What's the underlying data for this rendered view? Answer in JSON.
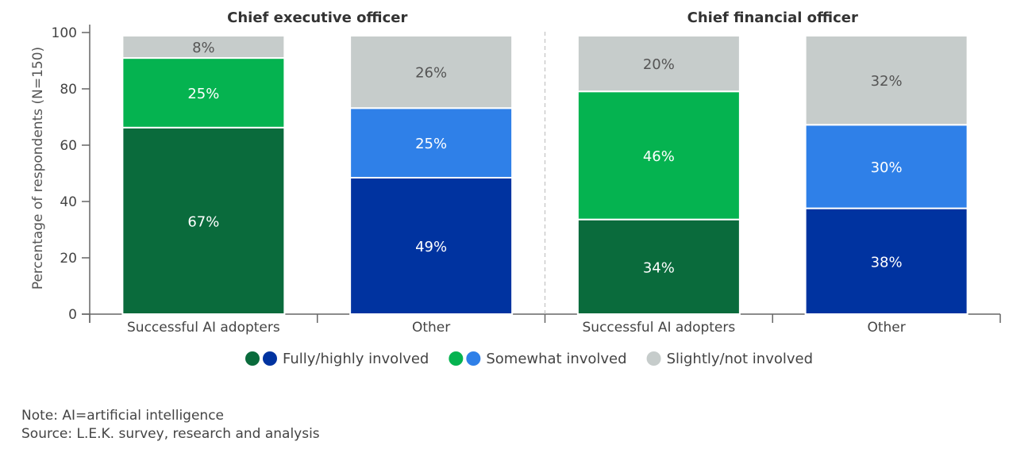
{
  "chart_data": {
    "type": "bar",
    "stacked": true,
    "ylabel": "Percentage of respondents (N=150)",
    "ylim": [
      0,
      100
    ],
    "yticks": [
      0,
      20,
      40,
      60,
      80,
      100
    ],
    "grid": false,
    "legend_placement": "bottom",
    "panels": [
      {
        "title": "Chief executive officer",
        "categories": [
          "Successful AI adopters",
          "Other"
        ],
        "series": [
          {
            "name": "Fully/highly involved",
            "values": [
              67,
              49
            ],
            "colors": [
              "#0a6b3c",
              "#0033a0"
            ],
            "labels": [
              "67%",
              "49%"
            ]
          },
          {
            "name": "Somewhat involved",
            "values": [
              25,
              25
            ],
            "colors": [
              "#05b350",
              "#2f80e8"
            ],
            "labels": [
              "25%",
              "25%"
            ]
          },
          {
            "name": "Slightly/not involved",
            "values": [
              8,
              26
            ],
            "colors": [
              "#c6cccb",
              "#c6cccb"
            ],
            "labels": [
              "8%",
              "26%"
            ]
          }
        ]
      },
      {
        "title": "Chief financial officer",
        "categories": [
          "Successful AI adopters",
          "Other"
        ],
        "series": [
          {
            "name": "Fully/highly involved",
            "values": [
              34,
              38
            ],
            "colors": [
              "#0a6b3c",
              "#0033a0"
            ],
            "labels": [
              "34%",
              "38%"
            ]
          },
          {
            "name": "Somewhat involved",
            "values": [
              46,
              30
            ],
            "colors": [
              "#05b350",
              "#2f80e8"
            ],
            "labels": [
              "46%",
              "30%"
            ]
          },
          {
            "name": "Slightly/not involved",
            "values": [
              20,
              32
            ],
            "colors": [
              "#c6cccb",
              "#c6cccb"
            ],
            "labels": [
              "20%",
              "32%"
            ]
          }
        ]
      }
    ],
    "legend": [
      {
        "label": "Fully/highly involved",
        "colors": [
          "#0a6b3c",
          "#0033a0"
        ]
      },
      {
        "label": "Somewhat involved",
        "colors": [
          "#05b350",
          "#2f80e8"
        ]
      },
      {
        "label": "Slightly/not involved",
        "colors": [
          "#c6cccb"
        ]
      }
    ]
  },
  "notes": {
    "note": "Note: AI=artificial intelligence",
    "source": "Source: L.E.K. survey, research and analysis"
  }
}
